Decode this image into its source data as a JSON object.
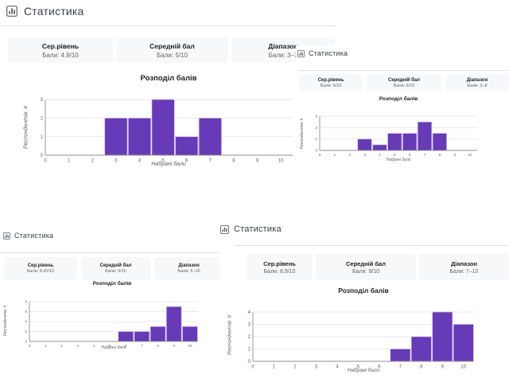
{
  "colors": {
    "bar": "#673ab7",
    "bar_border": "#d5c5f3",
    "divider": "#e0e0e0",
    "card_bg": "#f7f8f9",
    "gridline": "#e9e9e9",
    "axis_line": "#8f8f8f",
    "tick_text": "#616161",
    "header_text": "#3c4043",
    "icon": "#5f6368"
  },
  "panels": [
    {
      "title": "Статистика",
      "icon": "bar-chart-icon",
      "cards": [
        {
          "label": "Сер.рівень",
          "value": "Бали: 4,9/10"
        },
        {
          "label": "Середній бал",
          "value": "Бали: 5/10"
        },
        {
          "label": "Діапазон",
          "value": "Бали: 3–7"
        }
      ]
    },
    {
      "title": "Статистика",
      "icon": "bar-chart-icon",
      "cards": [
        {
          "label": "Сер.рівень",
          "value": "Бали: 6/10"
        },
        {
          "label": "Середній бал",
          "value": "Бали: 6/10"
        },
        {
          "label": "Діапазон",
          "value": "Бали: 3–8"
        }
      ]
    },
    {
      "title": "Статистика",
      "icon": "bar-chart-icon",
      "cards": [
        {
          "label": "Сер.рівень",
          "value": "Бали: 8,41/10"
        },
        {
          "label": "Середній бал",
          "value": "Бали: 9/10"
        },
        {
          "label": "Діапазон",
          "value": "Бали: 6–10"
        }
      ]
    },
    {
      "title": "Статистика",
      "icon": "bar-chart-icon",
      "cards": [
        {
          "label": "Сер.рівень",
          "value": "Бали: 8,9/10"
        },
        {
          "label": "Середній бал",
          "value": "Бали: 9/10"
        },
        {
          "label": "Діапазон",
          "value": "Бали: 7–10"
        }
      ]
    }
  ],
  "chart_data": [
    {
      "type": "bar",
      "title": "Розподіл балів",
      "xlabel": "Набрані бали",
      "ylabel": "Респондентів: #",
      "categories": [
        0,
        1,
        2,
        3,
        4,
        5,
        6,
        7,
        8,
        9,
        10
      ],
      "values": [
        0,
        0,
        0,
        2,
        2,
        3,
        1,
        2,
        0,
        0,
        0
      ],
      "x_ticks": [
        0,
        1,
        2,
        3,
        4,
        5,
        6,
        7,
        8,
        9,
        10
      ],
      "y_ticks": [
        0,
        1,
        2,
        3
      ],
      "xlim": [
        0,
        10.5
      ],
      "ylim": [
        0,
        3
      ],
      "grid": true,
      "legend": "none"
    },
    {
      "type": "bar",
      "title": "Розподіл балів",
      "xlabel": "Набрані бали",
      "ylabel": "Респондентів: #",
      "categories": [
        0,
        1,
        2,
        3,
        4,
        5,
        6,
        7,
        8,
        9,
        10
      ],
      "values": [
        0,
        0,
        0,
        2,
        1,
        3,
        3,
        5,
        3,
        0,
        0
      ],
      "x_ticks": [
        0,
        1,
        2,
        3,
        4,
        5,
        6,
        7,
        8,
        9,
        10
      ],
      "y_ticks": [
        0,
        2,
        4,
        6
      ],
      "xlim": [
        0,
        10.5
      ],
      "ylim": [
        0,
        6
      ],
      "grid": true,
      "legend": "none"
    },
    {
      "type": "bar",
      "title": "Розподіл балів",
      "xlabel": "Набрані бали",
      "ylabel": "Респондентів: #",
      "categories": [
        0,
        1,
        2,
        3,
        4,
        5,
        6,
        7,
        8,
        9,
        10
      ],
      "values": [
        0,
        0,
        0,
        0,
        0,
        0,
        2,
        2,
        3,
        7,
        3
      ],
      "x_ticks": [
        0,
        1,
        2,
        3,
        4,
        5,
        6,
        7,
        8,
        9,
        10
      ],
      "y_ticks": [
        0,
        2,
        4,
        6,
        8
      ],
      "xlim": [
        0,
        10.5
      ],
      "ylim": [
        0,
        8
      ],
      "grid": true,
      "legend": "none"
    },
    {
      "type": "bar",
      "title": "Розподіл балів",
      "xlabel": "Набрані бали",
      "ylabel": "Респондентів: #",
      "categories": [
        0,
        1,
        2,
        3,
        4,
        5,
        6,
        7,
        8,
        9,
        10
      ],
      "values": [
        0,
        0,
        0,
        0,
        0,
        0,
        0,
        1,
        2,
        4,
        3
      ],
      "x_ticks": [
        0,
        1,
        2,
        3,
        4,
        5,
        6,
        7,
        8,
        9,
        10
      ],
      "y_ticks": [
        0,
        1,
        2,
        3,
        4
      ],
      "xlim": [
        0,
        10.5
      ],
      "ylim": [
        0,
        4
      ],
      "grid": true,
      "legend": "none"
    }
  ]
}
